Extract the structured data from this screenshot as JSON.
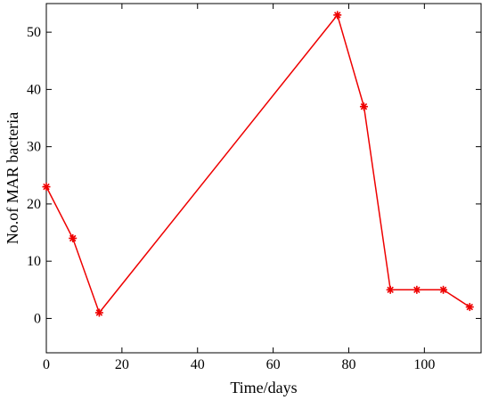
{
  "chart_data": {
    "type": "line",
    "xlabel": "Time/days",
    "ylabel": "No.of MAR bacteria",
    "xlim": [
      0,
      115
    ],
    "ylim": [
      -6,
      55
    ],
    "xticks": [
      0,
      20,
      40,
      60,
      80,
      100
    ],
    "yticks": [
      0,
      10,
      20,
      30,
      40,
      50
    ],
    "grid": false,
    "series": [
      {
        "color": "#ee0000",
        "marker": "asterisk",
        "x": [
          0,
          7,
          14,
          77,
          84,
          91,
          98,
          105,
          112
        ],
        "y": [
          23,
          14,
          1,
          53,
          37,
          5,
          5,
          5,
          2
        ]
      }
    ]
  }
}
